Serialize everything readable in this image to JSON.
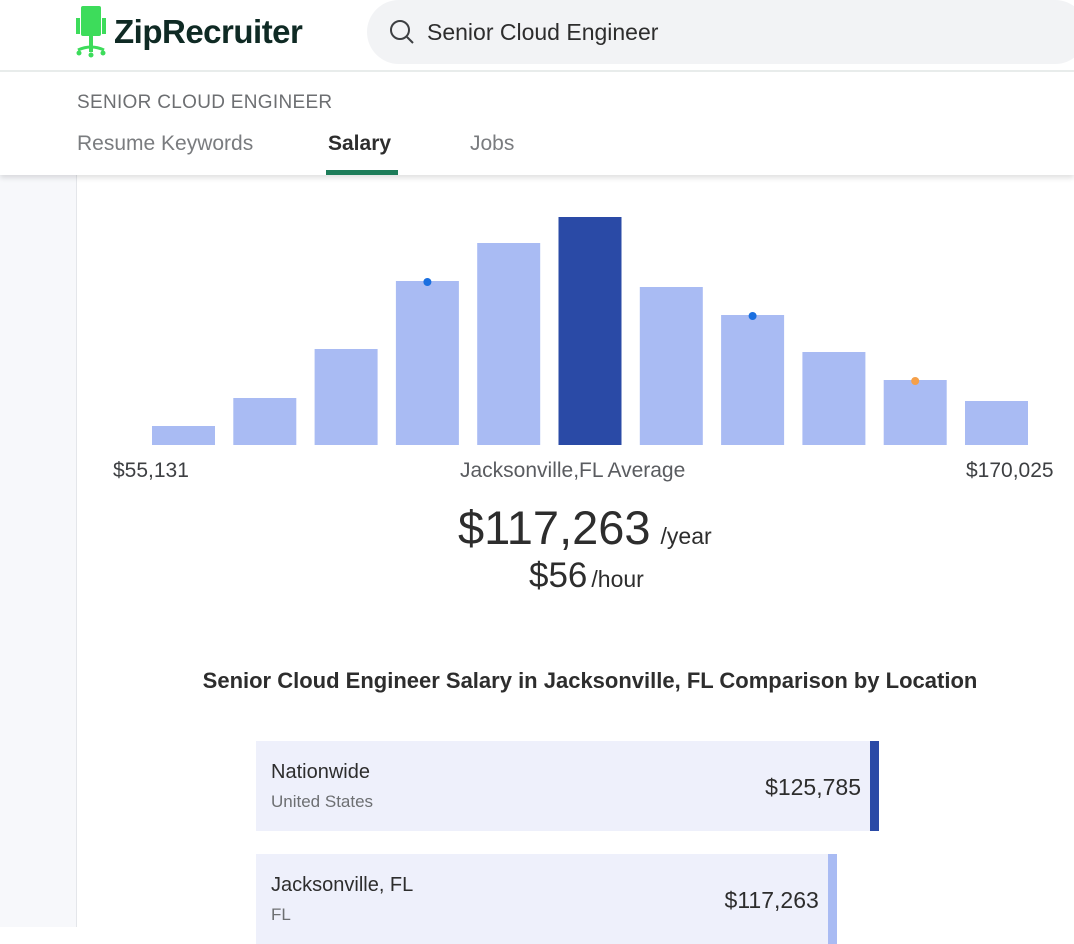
{
  "header": {
    "brand": "ZipRecruiter",
    "search_value": "Senior Cloud Engineer"
  },
  "subnav": {
    "breadcrumb": "SENIOR CLOUD ENGINEER",
    "tabs": [
      {
        "label": "Resume Keywords"
      },
      {
        "label": "Salary",
        "active": true
      },
      {
        "label": "Jobs"
      }
    ]
  },
  "colors": {
    "bar": "#a9bbf3",
    "bar_highlight": "#2a4aa6",
    "dot_blue": "#1a6fe0",
    "dot_orange": "#f5a04a",
    "brand_green": "#3ddc5b",
    "tab_underline": "#1e7d5a"
  },
  "chart_data": {
    "type": "bar",
    "description_note": "",
    "values": [
      19,
      47,
      96,
      164,
      202,
      228,
      158,
      130,
      93,
      65,
      44
    ],
    "highlight_index": 5,
    "markers": [
      {
        "index": 3,
        "color": "blue"
      },
      {
        "index": 7,
        "color": "blue"
      },
      {
        "index": 9,
        "color": "orange"
      }
    ],
    "min_label": "$55,131",
    "max_label": "$170,025",
    "center_label": "Jacksonville,FL Average"
  },
  "salary": {
    "yearly": "$117,263",
    "yearly_unit": "/year",
    "hourly": "$56",
    "hourly_unit": "/hour"
  },
  "comparison": {
    "title": "Senior Cloud Engineer Salary in Jacksonville, FL Comparison by Location",
    "rows": [
      {
        "name": "Nationwide",
        "sub": "United States",
        "value": "$125,785",
        "amount": 125785
      },
      {
        "name": "Jacksonville, FL",
        "sub": "FL",
        "value": "$117,263",
        "amount": 117263
      }
    ]
  }
}
